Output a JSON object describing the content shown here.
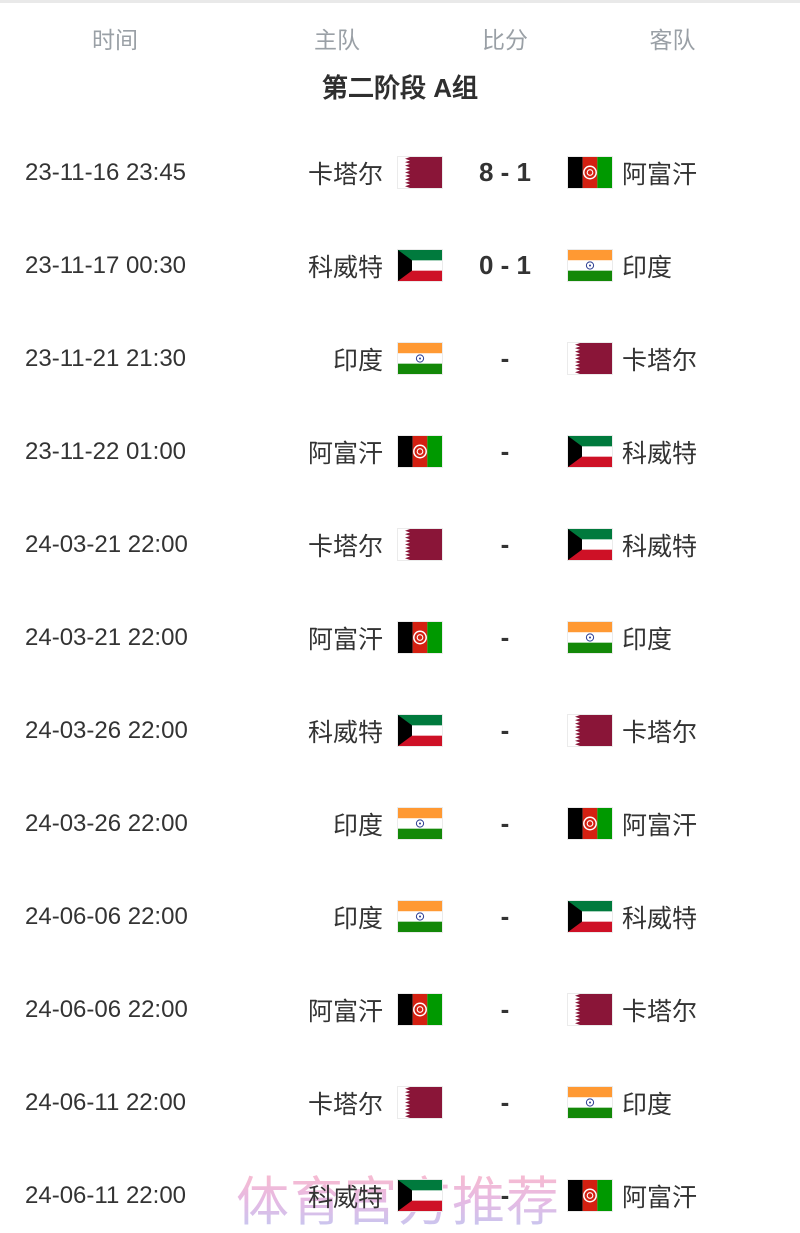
{
  "table_header": {
    "time": "时间",
    "home": "主队",
    "score": "比分",
    "away": "客队"
  },
  "stage_title": "第二阶段 A组",
  "watermark": "体育官方推荐",
  "matches": [
    {
      "time": "23-11-16 23:45",
      "home": "卡塔尔",
      "home_flag": "qatar",
      "score": "8 - 1",
      "away": "阿富汗",
      "away_flag": "afghanistan"
    },
    {
      "time": "23-11-17 00:30",
      "home": "科威特",
      "home_flag": "kuwait",
      "score": "0 - 1",
      "away": "印度",
      "away_flag": "india"
    },
    {
      "time": "23-11-21 21:30",
      "home": "印度",
      "home_flag": "india",
      "score": "-",
      "away": "卡塔尔",
      "away_flag": "qatar"
    },
    {
      "time": "23-11-22 01:00",
      "home": "阿富汗",
      "home_flag": "afghanistan",
      "score": "-",
      "away": "科威特",
      "away_flag": "kuwait"
    },
    {
      "time": "24-03-21 22:00",
      "home": "卡塔尔",
      "home_flag": "qatar",
      "score": "-",
      "away": "科威特",
      "away_flag": "kuwait"
    },
    {
      "time": "24-03-21 22:00",
      "home": "阿富汗",
      "home_flag": "afghanistan",
      "score": "-",
      "away": "印度",
      "away_flag": "india"
    },
    {
      "time": "24-03-26 22:00",
      "home": "科威特",
      "home_flag": "kuwait",
      "score": "-",
      "away": "卡塔尔",
      "away_flag": "qatar"
    },
    {
      "time": "24-03-26 22:00",
      "home": "印度",
      "home_flag": "india",
      "score": "-",
      "away": "阿富汗",
      "away_flag": "afghanistan"
    },
    {
      "time": "24-06-06 22:00",
      "home": "印度",
      "home_flag": "india",
      "score": "-",
      "away": "科威特",
      "away_flag": "kuwait"
    },
    {
      "time": "24-06-06 22:00",
      "home": "阿富汗",
      "home_flag": "afghanistan",
      "score": "-",
      "away": "卡塔尔",
      "away_flag": "qatar"
    },
    {
      "time": "24-06-11 22:00",
      "home": "卡塔尔",
      "home_flag": "qatar",
      "score": "-",
      "away": "印度",
      "away_flag": "india"
    },
    {
      "time": "24-06-11 22:00",
      "home": "科威特",
      "home_flag": "kuwait",
      "score": "-",
      "away": "阿富汗",
      "away_flag": "afghanistan"
    }
  ],
  "colors": {
    "header_text": "#9aa0a6",
    "body_text": "#333333",
    "qatar_maroon": "#8a1538",
    "kuwait_green": "#007a3d",
    "kuwait_red": "#ce1126",
    "india_saffron": "#ff9933",
    "india_green": "#138808",
    "india_navy": "#2a3b8f",
    "afghanistan_black": "#000000",
    "afghanistan_red": "#d32011",
    "afghanistan_green": "#009900",
    "watermark_pink": "#f3abc9",
    "watermark_lavender": "#b9b9ec"
  }
}
